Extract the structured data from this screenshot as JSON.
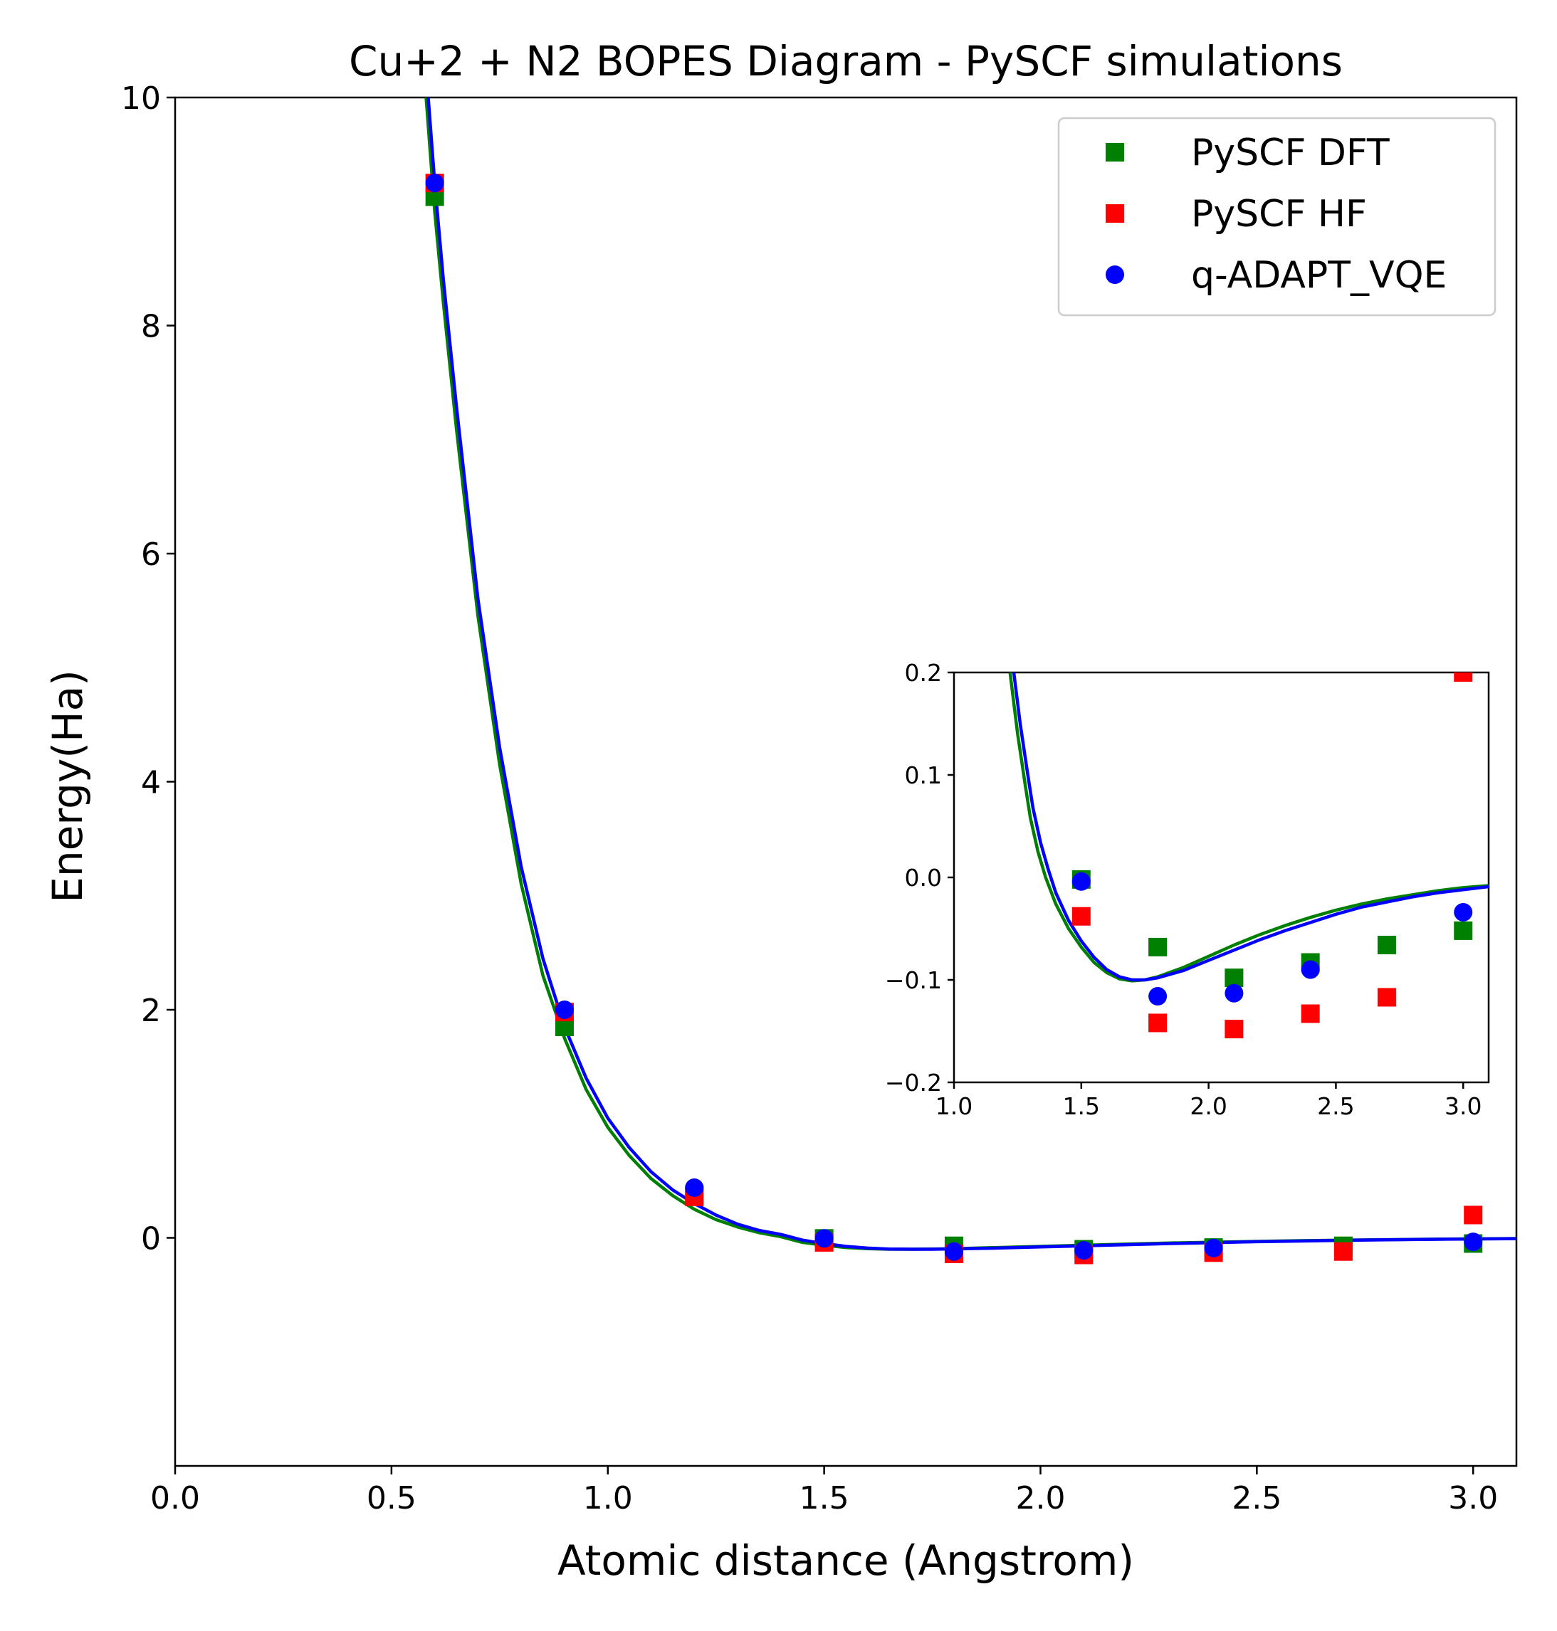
{
  "chart_data": [
    {
      "type": "scatter",
      "title": "Cu+2 + N2 BOPES Diagram - PySCF simulations",
      "xlabel": "Atomic distance (Angstrom)",
      "ylabel": "Energy(Ha)",
      "xlim": [
        0.0,
        3.1
      ],
      "ylim": [
        -2.0,
        10.0
      ],
      "xticks": [
        "0.0",
        "0.5",
        "1.0",
        "1.5",
        "2.0",
        "2.5",
        "3.0"
      ],
      "yticks": [
        "0",
        "2",
        "4",
        "6",
        "8",
        "10"
      ],
      "legend_position": "top-right",
      "grid": false,
      "series": [
        {
          "name": "PySCF DFT",
          "marker": "square",
          "color": "#008000",
          "x": [
            0.6,
            0.9,
            1.2,
            1.5,
            1.8,
            2.1,
            2.4,
            2.7,
            3.0
          ],
          "y": [
            9.13,
            1.85,
            0.38,
            -0.005,
            -0.07,
            -0.1,
            -0.085,
            -0.07,
            -0.05
          ]
        },
        {
          "name": "PySCF HF",
          "marker": "square",
          "color": "#ff0000",
          "x": [
            0.6,
            0.9,
            1.2,
            1.5,
            1.8,
            2.1,
            2.4,
            2.7,
            3.0
          ],
          "y": [
            9.25,
            1.98,
            0.36,
            -0.04,
            -0.14,
            -0.15,
            -0.13,
            -0.12,
            0.2
          ]
        },
        {
          "name": "q-ADAPT_VQE",
          "marker": "circle",
          "color": "#0000ff",
          "x": [
            0.6,
            0.9,
            1.2,
            1.5,
            1.8,
            2.1,
            2.4,
            3.0
          ],
          "y": [
            9.25,
            2.0,
            0.44,
            -0.005,
            -0.12,
            -0.11,
            -0.09,
            -0.035
          ]
        }
      ],
      "curves": [
        {
          "color": "#008000",
          "x": [
            0.58,
            0.6,
            0.62,
            0.65,
            0.7,
            0.75,
            0.8,
            0.85,
            0.9,
            0.95,
            1.0,
            1.05,
            1.1,
            1.15,
            1.2,
            1.25,
            1.3,
            1.35,
            1.4,
            1.45,
            1.5,
            1.55,
            1.6,
            1.65,
            1.7,
            1.75,
            1.8,
            1.9,
            2.0,
            2.1,
            2.2,
            2.3,
            2.4,
            2.5,
            2.6,
            2.7,
            2.8,
            2.9,
            3.0,
            3.1
          ],
          "y": [
            10.0,
            9.0,
            8.2,
            7.1,
            5.45,
            4.15,
            3.1,
            2.3,
            1.75,
            1.3,
            0.97,
            0.72,
            0.52,
            0.37,
            0.25,
            0.16,
            0.095,
            0.045,
            0.01,
            -0.04,
            -0.065,
            -0.085,
            -0.095,
            -0.1,
            -0.1,
            -0.098,
            -0.095,
            -0.085,
            -0.075,
            -0.065,
            -0.055,
            -0.045,
            -0.038,
            -0.031,
            -0.025,
            -0.02,
            -0.016,
            -0.012,
            -0.009,
            -0.006
          ]
        },
        {
          "color": "#0000ff",
          "x": [
            0.585,
            0.6,
            0.62,
            0.65,
            0.7,
            0.75,
            0.8,
            0.85,
            0.9,
            0.95,
            1.0,
            1.05,
            1.1,
            1.15,
            1.2,
            1.25,
            1.3,
            1.35,
            1.4,
            1.45,
            1.5,
            1.55,
            1.6,
            1.65,
            1.7,
            1.75,
            1.8,
            1.9,
            2.0,
            2.1,
            2.2,
            2.3,
            2.4,
            2.5,
            2.6,
            2.7,
            2.8,
            2.9,
            3.0,
            3.1
          ],
          "y": [
            10.0,
            9.25,
            8.4,
            7.3,
            5.6,
            4.3,
            3.25,
            2.45,
            1.85,
            1.4,
            1.05,
            0.79,
            0.58,
            0.42,
            0.3,
            0.2,
            0.12,
            0.065,
            0.03,
            -0.02,
            -0.05,
            -0.075,
            -0.09,
            -0.098,
            -0.1,
            -0.1,
            -0.097,
            -0.09,
            -0.08,
            -0.07,
            -0.06,
            -0.05,
            -0.042,
            -0.034,
            -0.028,
            -0.022,
            -0.017,
            -0.013,
            -0.01,
            -0.007
          ]
        }
      ]
    },
    {
      "type": "scatter",
      "title": "",
      "xlim": [
        1.0,
        3.1
      ],
      "ylim": [
        -0.2,
        0.2
      ],
      "xticks": [
        "1.0",
        "1.5",
        "2.0",
        "2.5",
        "3.0"
      ],
      "yticks": [
        "0.2",
        "0.1",
        "0.0",
        "−0.1",
        "−0.2"
      ],
      "series": [
        {
          "name": "PySCF DFT",
          "marker": "square",
          "color": "#008000",
          "x": [
            1.5,
            1.8,
            2.1,
            2.4,
            2.7,
            3.0
          ],
          "y": [
            -0.002,
            -0.068,
            -0.098,
            -0.083,
            -0.066,
            -0.052
          ]
        },
        {
          "name": "PySCF HF",
          "marker": "square",
          "color": "#ff0000",
          "x": [
            1.5,
            1.8,
            2.1,
            2.4,
            2.7,
            3.0
          ],
          "y": [
            -0.038,
            -0.142,
            -0.148,
            -0.133,
            -0.117,
            0.2
          ]
        },
        {
          "name": "q-ADAPT_VQE",
          "marker": "circle",
          "color": "#0000ff",
          "x": [
            1.5,
            1.8,
            2.1,
            2.4,
            3.0
          ],
          "y": [
            -0.004,
            -0.116,
            -0.113,
            -0.09,
            -0.034
          ]
        }
      ],
      "curves": [
        {
          "color": "#008000",
          "x": [
            1.22,
            1.25,
            1.28,
            1.3,
            1.33,
            1.36,
            1.4,
            1.45,
            1.5,
            1.55,
            1.6,
            1.65,
            1.7,
            1.75,
            1.8,
            1.9,
            2.0,
            2.1,
            2.2,
            2.3,
            2.4,
            2.5,
            2.6,
            2.7,
            2.8,
            2.9,
            3.0,
            3.1
          ],
          "y": [
            0.2,
            0.14,
            0.09,
            0.058,
            0.025,
            0.0,
            -0.026,
            -0.05,
            -0.068,
            -0.083,
            -0.093,
            -0.099,
            -0.101,
            -0.1,
            -0.097,
            -0.088,
            -0.077,
            -0.066,
            -0.056,
            -0.047,
            -0.039,
            -0.032,
            -0.026,
            -0.021,
            -0.017,
            -0.013,
            -0.01,
            -0.008
          ]
        },
        {
          "color": "#0000ff",
          "x": [
            1.235,
            1.26,
            1.29,
            1.31,
            1.34,
            1.37,
            1.4,
            1.45,
            1.5,
            1.55,
            1.6,
            1.65,
            1.7,
            1.75,
            1.8,
            1.9,
            2.0,
            2.1,
            2.2,
            2.3,
            2.4,
            2.5,
            2.6,
            2.7,
            2.8,
            2.9,
            3.0,
            3.1
          ],
          "y": [
            0.2,
            0.15,
            0.1,
            0.068,
            0.034,
            0.008,
            -0.015,
            -0.042,
            -0.062,
            -0.078,
            -0.09,
            -0.097,
            -0.1,
            -0.1,
            -0.098,
            -0.091,
            -0.081,
            -0.071,
            -0.061,
            -0.052,
            -0.044,
            -0.036,
            -0.029,
            -0.024,
            -0.019,
            -0.015,
            -0.012,
            -0.009
          ]
        }
      ]
    }
  ]
}
